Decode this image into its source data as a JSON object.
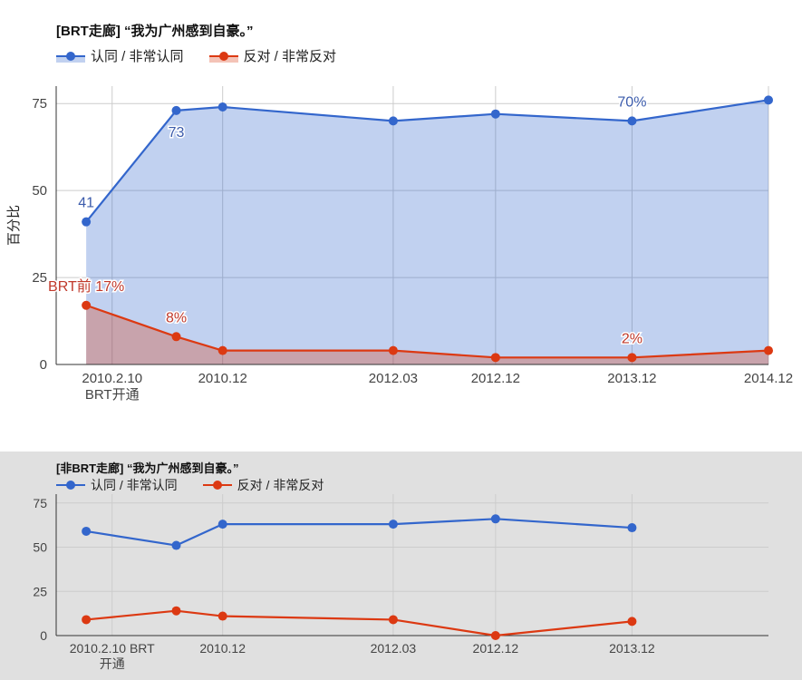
{
  "chart_data": [
    {
      "type": "area",
      "title": "[BRT走廊] “我为广州感到自豪。”",
      "ylabel": "百分比",
      "ylim": [
        0,
        80
      ],
      "yticks": [
        0,
        25,
        50,
        75
      ],
      "grid": true,
      "legend_placement": "top-left",
      "x_ticks": [
        {
          "value": 2010.11,
          "label": "2010.2.10",
          "label2": "BRT开通"
        },
        {
          "value": 2010.92,
          "label": "2010.12"
        },
        {
          "value": 2012.17,
          "label": "2012.03"
        },
        {
          "value": 2012.92,
          "label": "2012.12"
        },
        {
          "value": 2013.92,
          "label": "2013.12"
        },
        {
          "value": 2014.92,
          "label": "2014.12"
        }
      ],
      "xlim": [
        2009.7,
        2014.92
      ],
      "series": [
        {
          "name": "认同 / 非常认同",
          "color": "#3366cc",
          "x": [
            2009.92,
            2010.58,
            2010.92,
            2012.17,
            2012.92,
            2013.92,
            2014.92
          ],
          "values": [
            41,
            73,
            74,
            70,
            72,
            70,
            76
          ]
        },
        {
          "name": "反对 / 非常反对",
          "color": "#dc3912",
          "x": [
            2009.92,
            2010.58,
            2010.92,
            2012.17,
            2012.92,
            2013.92,
            2014.92
          ],
          "values": [
            17,
            8,
            4,
            4,
            2,
            2,
            4
          ]
        }
      ],
      "annotations": [
        {
          "series": 0,
          "point": 0,
          "text": "41",
          "pos": "above"
        },
        {
          "series": 0,
          "point": 1,
          "text": "73",
          "pos": "below"
        },
        {
          "series": 0,
          "point": 5,
          "text": "70%",
          "pos": "above"
        },
        {
          "series": 1,
          "point": 0,
          "text": "BRT前 17%",
          "pos": "above"
        },
        {
          "series": 1,
          "point": 1,
          "text": "8%",
          "pos": "above"
        },
        {
          "series": 1,
          "point": 5,
          "text": "2%",
          "pos": "above"
        }
      ]
    },
    {
      "type": "line",
      "title": "[非BRT走廊] “我为广州感到自豪。”",
      "ylim": [
        0,
        80
      ],
      "yticks": [
        0,
        25,
        50,
        75
      ],
      "grid": true,
      "legend_placement": "top-left",
      "x_ticks": [
        {
          "value": 2010.11,
          "label": "2010.2.10 BRT",
          "label2": "开通"
        },
        {
          "value": 2010.92,
          "label": "2010.12"
        },
        {
          "value": 2012.17,
          "label": "2012.03"
        },
        {
          "value": 2012.92,
          "label": "2012.12"
        },
        {
          "value": 2013.92,
          "label": "2013.12"
        }
      ],
      "xlim": [
        2009.7,
        2014.92
      ],
      "series": [
        {
          "name": "认同 / 非常认同",
          "color": "#3366cc",
          "x": [
            2009.92,
            2010.58,
            2010.92,
            2012.17,
            2012.92,
            2013.92
          ],
          "values": [
            59,
            51,
            63,
            63,
            66,
            61
          ]
        },
        {
          "name": "反对 / 非常反对",
          "color": "#dc3912",
          "x": [
            2009.92,
            2010.58,
            2010.92,
            2012.17,
            2012.92,
            2013.92
          ],
          "values": [
            9,
            14,
            11,
            9,
            0,
            8
          ]
        }
      ]
    }
  ]
}
